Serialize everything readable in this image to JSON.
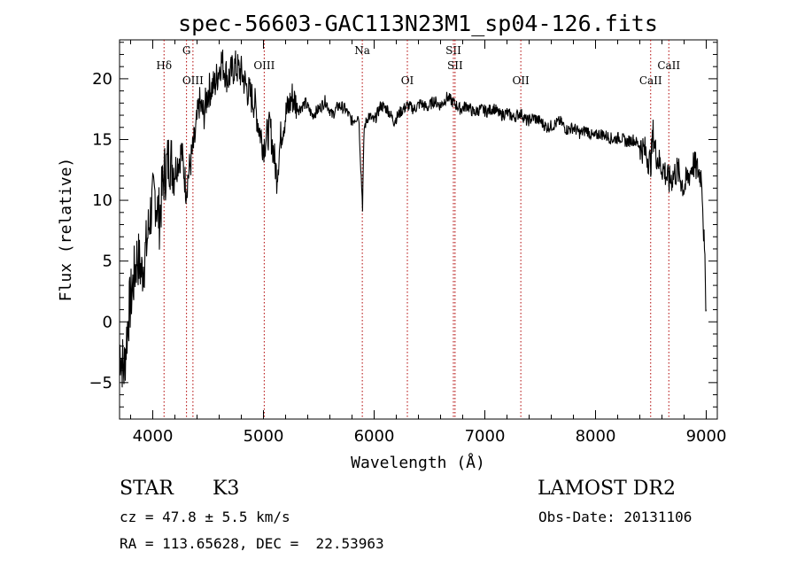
{
  "chart_data": {
    "type": "line",
    "title": "spec-56603-GAC113N23M1_sp04-126.fits",
    "xlabel": "Wavelength (Å)",
    "ylabel": "Flux (relative)",
    "xlim": [
      3700,
      9100
    ],
    "ylim": [
      -8,
      23.2
    ],
    "xticks": [
      4000,
      5000,
      6000,
      7000,
      8000,
      9000
    ],
    "xtick_labels": [
      "4000",
      "5000",
      "6000",
      "7000",
      "8000",
      "9000"
    ],
    "yticks": [
      -5,
      0,
      5,
      10,
      15,
      20
    ],
    "ytick_labels": [
      "−5",
      "0",
      "5",
      "10",
      "15",
      "20"
    ],
    "grid": false,
    "series": [
      {
        "color": "#000000",
        "x": [
          3700,
          3740,
          3780,
          3820,
          3860,
          3900,
          3940,
          3980,
          4020,
          4060,
          4100,
          4150,
          4200,
          4260,
          4300,
          4340,
          4380,
          4420,
          4460,
          4500,
          4560,
          4620,
          4680,
          4740,
          4800,
          4860,
          4920,
          4960,
          5000,
          5060,
          5120,
          5160,
          5200,
          5260,
          5320,
          5380,
          5440,
          5500,
          5560,
          5620,
          5680,
          5740,
          5800,
          5860,
          5895,
          5910,
          5950,
          6000,
          6060,
          6120,
          6180,
          6240,
          6300,
          6360,
          6420,
          6480,
          6540,
          6600,
          6660,
          6720,
          6780,
          6840,
          6900,
          6960,
          7020,
          7080,
          7140,
          7200,
          7260,
          7320,
          7380,
          7440,
          7500,
          7560,
          7620,
          7680,
          7740,
          7800,
          7860,
          7920,
          7980,
          8040,
          8100,
          8160,
          8220,
          8280,
          8340,
          8400,
          8450,
          8498,
          8520,
          8542,
          8580,
          8620,
          8662,
          8700,
          8740,
          8800,
          8840,
          8880,
          8920,
          8960,
          9000
        ],
        "y": [
          -2.0,
          -4.0,
          0.5,
          3.0,
          5.5,
          4.0,
          6.0,
          9.0,
          10.5,
          8.5,
          12.0,
          13.5,
          12.5,
          14.0,
          11.0,
          13.0,
          15.0,
          18.0,
          17.0,
          19.0,
          19.5,
          21.5,
          20.0,
          21.0,
          20.5,
          19.0,
          18.0,
          16.0,
          14.5,
          16.0,
          12.0,
          15.5,
          17.0,
          18.5,
          17.5,
          18.0,
          17.0,
          17.5,
          18.2,
          17.0,
          17.8,
          17.5,
          16.5,
          17.0,
          9.5,
          16.0,
          17.0,
          16.5,
          17.8,
          17.5,
          16.5,
          17.3,
          17.8,
          17.5,
          18.0,
          17.6,
          18.2,
          17.8,
          18.5,
          18.0,
          17.5,
          17.8,
          17.2,
          17.5,
          17.3,
          17.6,
          17.0,
          17.2,
          16.8,
          17.2,
          16.5,
          16.8,
          16.5,
          16.0,
          16.2,
          16.5,
          15.8,
          16.0,
          15.5,
          15.8,
          15.2,
          15.5,
          15.3,
          15.0,
          15.2,
          14.8,
          15.0,
          14.5,
          14.0,
          13.0,
          15.5,
          14.0,
          13.0,
          12.5,
          11.5,
          12.0,
          12.5,
          11.0,
          12.0,
          13.0,
          12.5,
          12.0,
          1.0
        ]
      }
    ],
    "line_markers": [
      {
        "name": "Hδ",
        "x": 4102,
        "row": 1
      },
      {
        "name": "G",
        "x": 4305,
        "row": 0
      },
      {
        "name": "OIII",
        "x": 4363,
        "row": 2
      },
      {
        "name": "OIII",
        "x": 5007,
        "row": 1
      },
      {
        "name": "Na",
        "x": 5893,
        "row": 0
      },
      {
        "name": "OI",
        "x": 6300,
        "row": 2
      },
      {
        "name": "SII",
        "x": 6716,
        "row": 0
      },
      {
        "name": "SII",
        "x": 6731,
        "row": 1
      },
      {
        "name": "OII",
        "x": 7325,
        "row": 2
      },
      {
        "name": "CaII",
        "x": 8498,
        "row": 2
      },
      {
        "name": "CaII",
        "x": 8662,
        "row": 1
      }
    ]
  },
  "info": {
    "obj_class": "STAR",
    "subclass": "K3",
    "survey": "LAMOST DR2",
    "cz": "cz = 47.8 ± 5.5 km/s",
    "obs_date": "Obs-Date: 20131106",
    "radec": "RA = 113.65628, DEC =  22.53963"
  }
}
